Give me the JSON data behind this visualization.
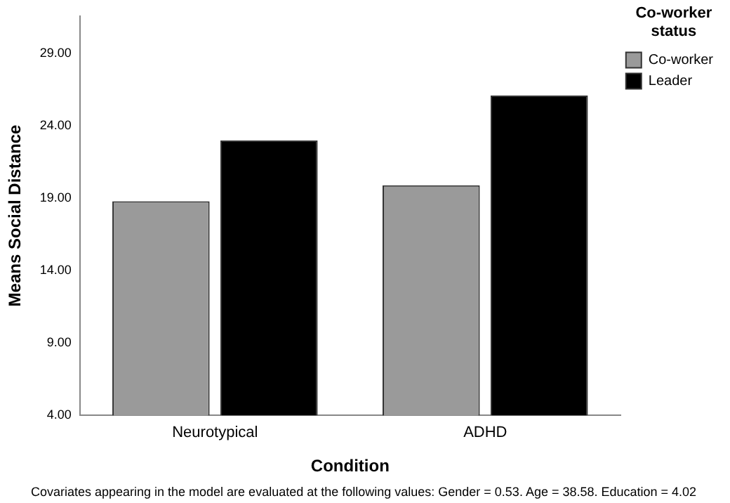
{
  "chart_data": {
    "type": "bar",
    "xlabel": "Condition",
    "ylabel": "Means Social Distance",
    "legend_title": "Co-worker status",
    "categories": [
      "Neurotypical",
      "ADHD"
    ],
    "series": [
      {
        "name": "Co-worker",
        "color": "#9a9a9a",
        "values": [
          18.8,
          19.9
        ]
      },
      {
        "name": "Leader",
        "color": "#000000",
        "values": [
          23.0,
          26.1
        ]
      }
    ],
    "ylim": [
      4,
      31.6
    ],
    "yticks": [
      {
        "value": 4,
        "label": "4.00"
      },
      {
        "value": 9,
        "label": "9.00"
      },
      {
        "value": 14,
        "label": "14.00"
      },
      {
        "value": 19,
        "label": "19.00"
      },
      {
        "value": 24,
        "label": "24.00"
      },
      {
        "value": 29,
        "label": "29.00"
      }
    ],
    "grid": false,
    "legend": "top right",
    "annotations": [
      "Covariates appearing in the model are evaluated at the following values: Gender = 0.53. Age = 38.58. Education = 4.02"
    ]
  }
}
